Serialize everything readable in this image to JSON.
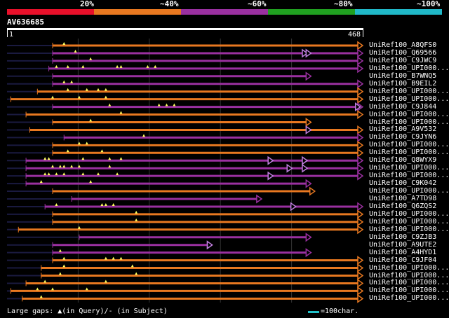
{
  "legend": {
    "labels": [
      "20%",
      "~40%",
      "~60%",
      "~80%",
      "~100%"
    ],
    "colors": [
      "#e8102a",
      "#e87820",
      "#9a30a0",
      "#20a020",
      "#20b8c8"
    ]
  },
  "query": {
    "name": "AV636685",
    "start": "1",
    "end": "468",
    "length": 468
  },
  "colors": {
    "hit_line": "#e87820",
    "hit_line_alt": "#9a30a0",
    "insert_marker": "#ffff60",
    "gap_marker": "#c080e0",
    "scale": "#20c0c8",
    "dim_line": "#1a1a40"
  },
  "hits": [
    {
      "name": "UniRef100_A8QFS0",
      "qstart": 60,
      "qend": 468,
      "color": "orange",
      "ins": [
        75
      ]
    },
    {
      "name": "UniRef100_Q69566",
      "qstart": 60,
      "qend": 468,
      "color": "purple",
      "ins": [
        90
      ],
      "arrows": [
        395,
        400
      ]
    },
    {
      "name": "UniRef100_C9JWC9",
      "qstart": 60,
      "qend": 468,
      "color": "purple",
      "ins": [
        110
      ]
    },
    {
      "name": "UniRef100_UPI000...",
      "qstart": 55,
      "qend": 468,
      "color": "purple",
      "ins": [
        65,
        80,
        100,
        145,
        150,
        185,
        195
      ]
    },
    {
      "name": "UniRef100_B7WNQ5",
      "qstart": 60,
      "qend": 400,
      "color": "purple",
      "ins": []
    },
    {
      "name": "UniRef100_B9EIL2",
      "qstart": 60,
      "qend": 468,
      "color": "purple",
      "ins": [
        75,
        85
      ]
    },
    {
      "name": "UniRef100_UPI000...",
      "qstart": 40,
      "qend": 468,
      "color": "orange",
      "ins": [
        80,
        105,
        120,
        130
      ]
    },
    {
      "name": "UniRef100_UPI000...",
      "qstart": 5,
      "qend": 468,
      "color": "orange",
      "ins": [
        60,
        95,
        130
      ]
    },
    {
      "name": "UniRef100_C9J844",
      "qstart": 60,
      "qend": 468,
      "color": "purple",
      "ins": [
        135,
        200,
        210,
        220
      ],
      "arrows": [
        465
      ]
    },
    {
      "name": "UniRef100_UPI000...",
      "qstart": 25,
      "qend": 468,
      "color": "orange",
      "ins": [
        150
      ]
    },
    {
      "name": "UniRef100_UPI000...",
      "qstart": 60,
      "qend": 400,
      "color": "orange",
      "ins": [
        110
      ]
    },
    {
      "name": "UniRef100_A9V532",
      "qstart": 30,
      "qend": 468,
      "color": "orange",
      "ins": [],
      "arrows": [
        400
      ]
    },
    {
      "name": "UniRef100_C9JYN6",
      "qstart": 75,
      "qend": 468,
      "color": "purple",
      "ins": [
        180
      ]
    },
    {
      "name": "UniRef100_UPI000...",
      "qstart": 60,
      "qend": 468,
      "color": "orange",
      "ins": [
        95,
        105
      ]
    },
    {
      "name": "UniRef100_UPI000...",
      "qstart": 60,
      "qend": 468,
      "color": "orange",
      "ins": [
        80,
        125
      ]
    },
    {
      "name": "UniRef100_Q8WYX9",
      "qstart": 25,
      "qend": 468,
      "color": "purple",
      "ins": [
        50,
        55,
        100,
        135,
        150
      ],
      "arrows": [
        350,
        395
      ]
    },
    {
      "name": "UniRef100_UPI000...",
      "qstart": 25,
      "qend": 468,
      "color": "purple",
      "ins": [
        60,
        70,
        75,
        85,
        95,
        135
      ],
      "arrows": [
        375,
        395
      ]
    },
    {
      "name": "UniRef100_UPI000...",
      "qstart": 25,
      "qend": 468,
      "color": "purple",
      "ins": [
        50,
        55,
        65,
        75,
        100,
        120,
        145
      ],
      "arrows": [
        350
      ]
    },
    {
      "name": "UniRef100_C9K042",
      "qstart": 25,
      "qend": 400,
      "color": "purple",
      "ins": [
        45,
        110
      ]
    },
    {
      "name": "UniRef100_UPI000...",
      "qstart": 60,
      "qend": 405,
      "color": "orange",
      "ins": []
    },
    {
      "name": "UniRef100_A7TD98",
      "qstart": 85,
      "qend": 335,
      "color": "purple",
      "ins": []
    },
    {
      "name": "UniRef100_Q6ZQS2",
      "qstart": 50,
      "qend": 468,
      "color": "purple",
      "ins": [
        65,
        125,
        130,
        140
      ],
      "arrows": [
        380
      ]
    },
    {
      "name": "UniRef100_UPI000...",
      "qstart": 60,
      "qend": 468,
      "color": "orange",
      "ins": [
        170
      ]
    },
    {
      "name": "UniRef100_UPI000...",
      "qstart": 60,
      "qend": 468,
      "color": "orange",
      "ins": [
        170
      ]
    },
    {
      "name": "UniRef100_UPI000...",
      "qstart": 15,
      "qend": 468,
      "color": "orange",
      "ins": [
        95
      ]
    },
    {
      "name": "UniRef100_C9ZJB3",
      "qstart": 95,
      "qend": 400,
      "color": "purple",
      "ins": []
    },
    {
      "name": "UniRef100_A9UTE2",
      "qstart": 60,
      "qend": 270,
      "color": "purple",
      "ins": [],
      "arrows": [
        270
      ]
    },
    {
      "name": "UniRef100_A4HYD1",
      "qstart": 60,
      "qend": 400,
      "color": "purple",
      "ins": [
        70
      ]
    },
    {
      "name": "UniRef100_C9JF04",
      "qstart": 60,
      "qend": 468,
      "color": "orange",
      "ins": [
        75,
        130,
        140,
        150
      ]
    },
    {
      "name": "UniRef100_UPI000...",
      "qstart": 45,
      "qend": 468,
      "color": "orange",
      "ins": [
        75,
        165
      ]
    },
    {
      "name": "UniRef100_UPI000...",
      "qstart": 45,
      "qend": 468,
      "color": "orange",
      "ins": [
        70,
        170
      ]
    },
    {
      "name": "UniRef100_UPI000...",
      "qstart": 25,
      "qend": 468,
      "color": "orange",
      "ins": [
        50,
        130
      ]
    },
    {
      "name": "UniRef100_UPI000...",
      "qstart": 5,
      "qend": 468,
      "color": "orange",
      "ins": [
        40,
        60,
        105
      ]
    },
    {
      "name": "UniRef100_UPI000...",
      "qstart": 20,
      "qend": 468,
      "color": "orange",
      "ins": [
        45
      ]
    }
  ],
  "footer": {
    "gaps_text": "Large gaps: ▲(in Query)/- (in Subject)",
    "scale_text": "=100char."
  }
}
